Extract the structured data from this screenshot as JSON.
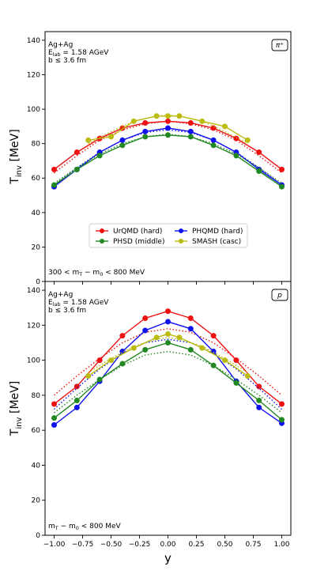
{
  "colors": {
    "UrQMD": "#ee1111",
    "PHQMD": "#1111ee",
    "PHSD": "#228822",
    "SMASH": "#bbbb11"
  },
  "chart_data": [
    {
      "type": "line",
      "particle_label": "π⁺",
      "annotation_lines": [
        "Ag+Ag",
        "E_lab = 1.58 AGeV",
        "b ≤ 3.6 fm"
      ],
      "cut_label": "300 < m_T − m_0 < 800 MeV",
      "ylabel": "T_inv [MeV]",
      "xlabel": "",
      "xlim": [
        -1.08,
        1.08
      ],
      "ylim": [
        0,
        145
      ],
      "yticks": [
        0,
        20,
        40,
        60,
        80,
        100,
        120,
        140
      ],
      "xticks": [
        -1.0,
        -0.75,
        -0.5,
        -0.25,
        0.0,
        0.25,
        0.5,
        0.75,
        1.0
      ],
      "grid": false,
      "legend_position": "lower-center",
      "legend_columns": 2,
      "series": [
        {
          "name": "UrQMD (hard)",
          "color_key": "UrQMD",
          "x": [
            -1.0,
            -0.8,
            -0.6,
            -0.4,
            -0.2,
            0.0,
            0.2,
            0.4,
            0.6,
            0.8,
            1.0
          ],
          "y": [
            65,
            75,
            83,
            89,
            92,
            93,
            92,
            89,
            83,
            75,
            65
          ],
          "fit": [
            63,
            73,
            82,
            88,
            91.5,
            93,
            91.5,
            88,
            82,
            73,
            63
          ]
        },
        {
          "name": "PHQMD (hard)",
          "color_key": "PHQMD",
          "x": [
            -1.0,
            -0.8,
            -0.6,
            -0.4,
            -0.2,
            0.0,
            0.2,
            0.4,
            0.6,
            0.8,
            1.0
          ],
          "y": [
            55,
            65,
            75,
            82,
            87,
            89,
            87,
            82,
            75,
            65,
            56
          ],
          "fit": [
            56,
            66,
            75,
            82,
            86.5,
            88,
            86.5,
            82,
            75,
            66,
            56
          ]
        },
        {
          "name": "PHSD (middle)",
          "color_key": "PHSD",
          "x": [
            -1.0,
            -0.8,
            -0.6,
            -0.4,
            -0.2,
            0.0,
            0.2,
            0.4,
            0.6,
            0.8,
            1.0
          ],
          "y": [
            56,
            65,
            73,
            79,
            84,
            85,
            84,
            79,
            73,
            64,
            55
          ],
          "fit": [
            57,
            66,
            74,
            80,
            84,
            85.5,
            84,
            80,
            74,
            66,
            57
          ]
        },
        {
          "name": "SMASH (casc)",
          "color_key": "SMASH",
          "x": [
            -0.7,
            -0.5,
            -0.3,
            -0.1,
            0.0,
            0.1,
            0.3,
            0.5,
            0.7
          ],
          "y": [
            82,
            84,
            93,
            96,
            96,
            96,
            93,
            90,
            82
          ],
          "fit": [
            80,
            87,
            93,
            96,
            96.5,
            96,
            93,
            87,
            80
          ]
        }
      ]
    },
    {
      "type": "line",
      "particle_label": "p",
      "annotation_lines": [
        "Ag+Ag",
        "E_lab = 1.58 AGeV",
        "b ≤ 3.6 fm"
      ],
      "cut_label": "m_T − m_0 < 800 MeV",
      "ylabel": "T_inv [MeV]",
      "xlabel": "y",
      "xlim": [
        -1.08,
        1.08
      ],
      "ylim": [
        0,
        145
      ],
      "yticks": [
        0,
        20,
        40,
        60,
        80,
        100,
        120,
        140
      ],
      "xticks": [
        -1.0,
        -0.75,
        -0.5,
        -0.25,
        0.0,
        0.25,
        0.5,
        0.75,
        1.0
      ],
      "xticklabels": [
        "−1.00",
        "−0.75",
        "−0.50",
        "−0.25",
        "0.00",
        "0.25",
        "0.50",
        "0.75",
        "1.00"
      ],
      "grid": false,
      "series": [
        {
          "name": "UrQMD (hard)",
          "color_key": "UrQMD",
          "x": [
            -1.0,
            -0.8,
            -0.6,
            -0.4,
            -0.2,
            0.0,
            0.2,
            0.4,
            0.6,
            0.8,
            1.0
          ],
          "y": [
            75,
            85,
            100,
            114,
            124,
            128,
            124,
            114,
            100,
            85,
            75
          ],
          "fit": [
            80,
            91,
            101,
            110,
            116,
            118,
            116,
            110,
            101,
            91,
            80
          ]
        },
        {
          "name": "PHQMD (hard)",
          "color_key": "PHQMD",
          "x": [
            -1.0,
            -0.8,
            -0.6,
            -0.4,
            -0.2,
            0.0,
            0.2,
            0.4,
            0.6,
            0.8,
            1.0
          ],
          "y": [
            63,
            73,
            88,
            105,
            117,
            122,
            118,
            105,
            88,
            73,
            64
          ],
          "fit": [
            72,
            84,
            95,
            104,
            110,
            112,
            110,
            104,
            95,
            84,
            72
          ]
        },
        {
          "name": "PHSD (middle)",
          "color_key": "PHSD",
          "x": [
            -1.0,
            -0.8,
            -0.6,
            -0.4,
            -0.2,
            0.0,
            0.2,
            0.4,
            0.6,
            0.8,
            1.0
          ],
          "y": [
            67,
            77,
            89,
            98,
            106,
            110,
            106,
            97,
            87,
            77,
            66
          ],
          "fit": [
            70,
            80,
            89,
            97,
            103,
            105,
            103,
            97,
            89,
            80,
            70
          ]
        },
        {
          "name": "SMASH (casc)",
          "color_key": "SMASH",
          "x": [
            -0.7,
            -0.5,
            -0.3,
            -0.1,
            0.0,
            0.1,
            0.3,
            0.5,
            0.7
          ],
          "y": [
            91,
            100,
            107,
            113,
            115,
            113,
            107,
            100,
            91
          ],
          "fit": [
            93,
            101,
            108,
            112,
            113,
            112,
            108,
            101,
            93
          ]
        }
      ]
    }
  ]
}
